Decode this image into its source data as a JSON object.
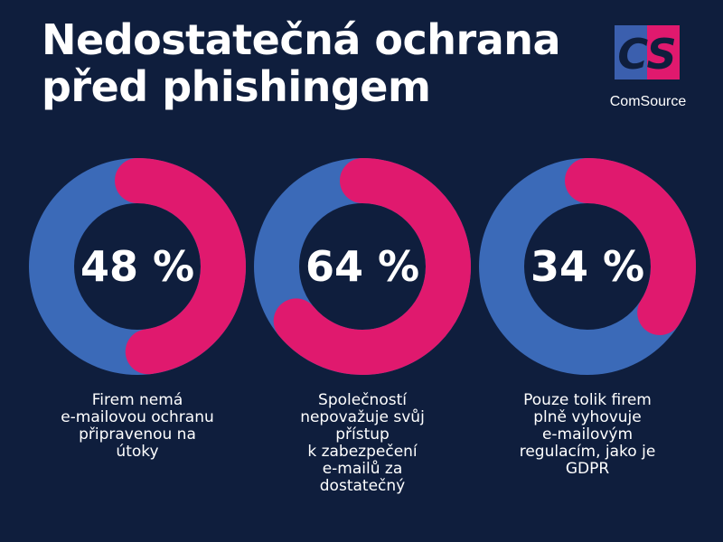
{
  "title": {
    "line1": "Nedostatečná ochrana",
    "line2": "před phishingem"
  },
  "logo": {
    "mark": "CS",
    "name": "ComSource"
  },
  "colors": {
    "background": "#0f1e3d",
    "ring_base": "#3b6ab8",
    "ring_highlight": "#e0196e",
    "logo_blue": "#3b5fae",
    "logo_pink": "#e0196e"
  },
  "chart_data": [
    {
      "type": "donut",
      "value": 48,
      "label": "48 %",
      "caption": [
        "Firem nemá",
        "e-mailovou ochranu",
        "připravenou na",
        "útoky"
      ]
    },
    {
      "type": "donut",
      "value": 64,
      "label": "64 %",
      "caption": [
        "Společností",
        "nepovažuje svůj",
        "přístup",
        "k zabezpečení",
        "e-mailů za",
        "dostatečný"
      ]
    },
    {
      "type": "donut",
      "value": 34,
      "label": "34 %",
      "caption": [
        "Pouze tolik firem",
        "plně vyhovuje",
        "e-mailovým",
        "regulacím, jako je",
        "GDPR"
      ]
    }
  ]
}
